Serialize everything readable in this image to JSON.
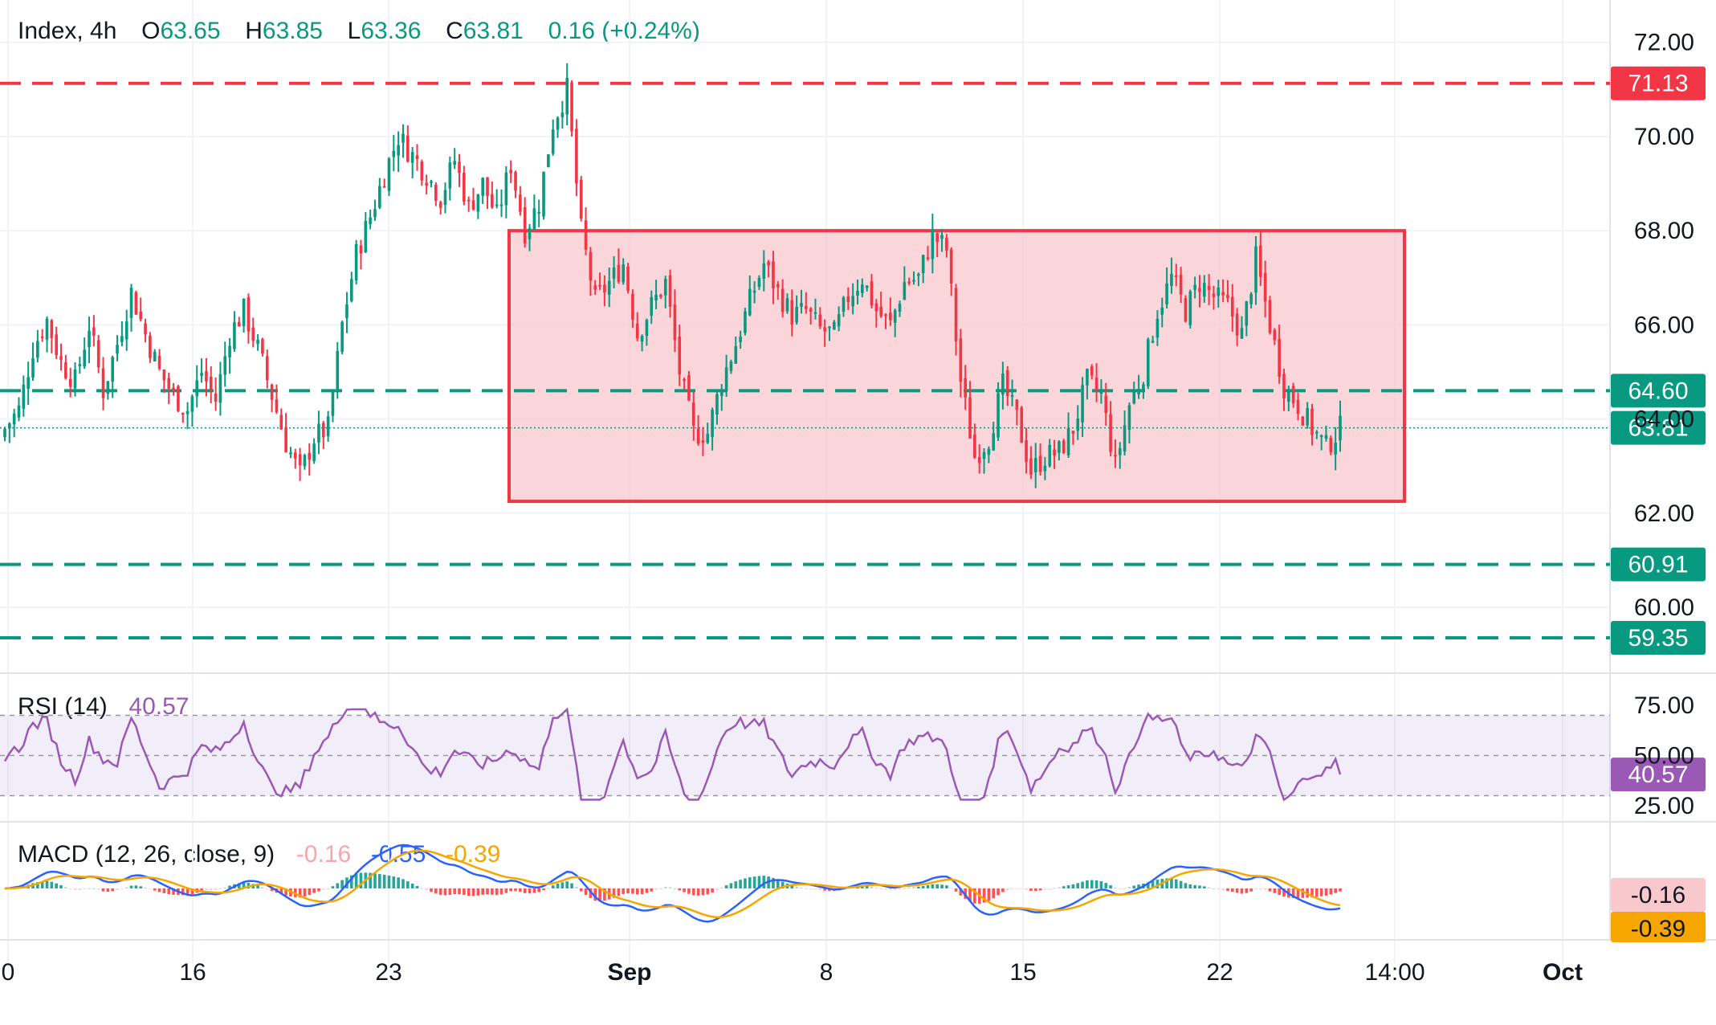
{
  "header": {
    "symbol": "Index, 4h",
    "o_label": "O",
    "o_value": "63.65",
    "h_label": "H",
    "h_value": "63.85",
    "l_label": "L",
    "l_value": "63.36",
    "c_label": "C",
    "c_value": "63.81",
    "change": "0.16 (+0.24%)"
  },
  "rsi": {
    "label": "RSI (14)",
    "value": "40.57"
  },
  "macd": {
    "label": "MACD (12, 26, close, 9)",
    "hist_value": "-0.16",
    "macd_value": "-0.55",
    "signal_value": "-0.39"
  },
  "colors": {
    "up": "#089981",
    "down": "#f23645",
    "resistance": "#f23645",
    "support": "#089981",
    "range_fill": "#f8c8cd",
    "rsi_line": "#9b59b6",
    "macd_line": "#2962ff",
    "signal_line": "#f7a600"
  },
  "chart_data": [
    {
      "type": "candlestick",
      "timeframe": "4h",
      "y_axis_ticks": [
        "72.00",
        "70.00",
        "68.00",
        "66.00",
        "64.00",
        "62.00",
        "60.00"
      ],
      "x_axis_ticks": [
        "0",
        "16",
        "23",
        "Sep",
        "8",
        "15",
        "22",
        "14:00",
        "Oct"
      ],
      "ylim": [
        58.6,
        72.9
      ],
      "horizontal_levels": [
        {
          "value": 71.13,
          "label": "71.13",
          "style": "dashed",
          "color": "red"
        },
        {
          "value": 64.6,
          "label": "64.60",
          "style": "dashed",
          "color": "green"
        },
        {
          "value": 60.91,
          "label": "60.91",
          "style": "dashed",
          "color": "green"
        },
        {
          "value": 59.35,
          "label": "59.35",
          "style": "dashed",
          "color": "green"
        }
      ],
      "last_price": {
        "value": 63.81,
        "label": "63.81"
      },
      "range_box": {
        "top": 68.0,
        "bottom": 62.25
      },
      "close_path": [
        63.8,
        64.2,
        65.5,
        66.1,
        65.2,
        64.8,
        66.0,
        64.6,
        65.6,
        66.7,
        65.8,
        65.0,
        64.5,
        64.2,
        65.0,
        64.4,
        65.8,
        66.3,
        65.5,
        64.5,
        63.5,
        62.8,
        63.6,
        63.8,
        66.0,
        67.5,
        68.3,
        69.2,
        70.0,
        69.6,
        69.2,
        68.7,
        69.5,
        68.5,
        69.0,
        68.3,
        69.4,
        68.0,
        68.6,
        70.3,
        71.0,
        68.0,
        66.5,
        66.9,
        67.3,
        65.8,
        66.4,
        66.9,
        65.0,
        63.7,
        63.7,
        64.8,
        65.6,
        66.5,
        67.3,
        66.7,
        66.2,
        66.3,
        65.9,
        65.8,
        66.6,
        67.0,
        66.3,
        66.0,
        66.9,
        67.0,
        67.9,
        67.6,
        64.8,
        63.2,
        63.6,
        64.7,
        64.0,
        62.9,
        63.2,
        63.3,
        63.8,
        64.8,
        64.5,
        63.0,
        64.3,
        65.0,
        66.3,
        67.0,
        66.3,
        66.9,
        66.6,
        66.4,
        65.8,
        67.4,
        66.0,
        64.7,
        64.3,
        63.8,
        63.4,
        63.8
      ],
      "rsi_ticks": [
        "75.00",
        "50.00",
        "25.00"
      ],
      "rsi_last": 40.57,
      "macd_last": {
        "histogram": -0.16,
        "macd": -0.55,
        "signal": -0.39
      }
    }
  ]
}
